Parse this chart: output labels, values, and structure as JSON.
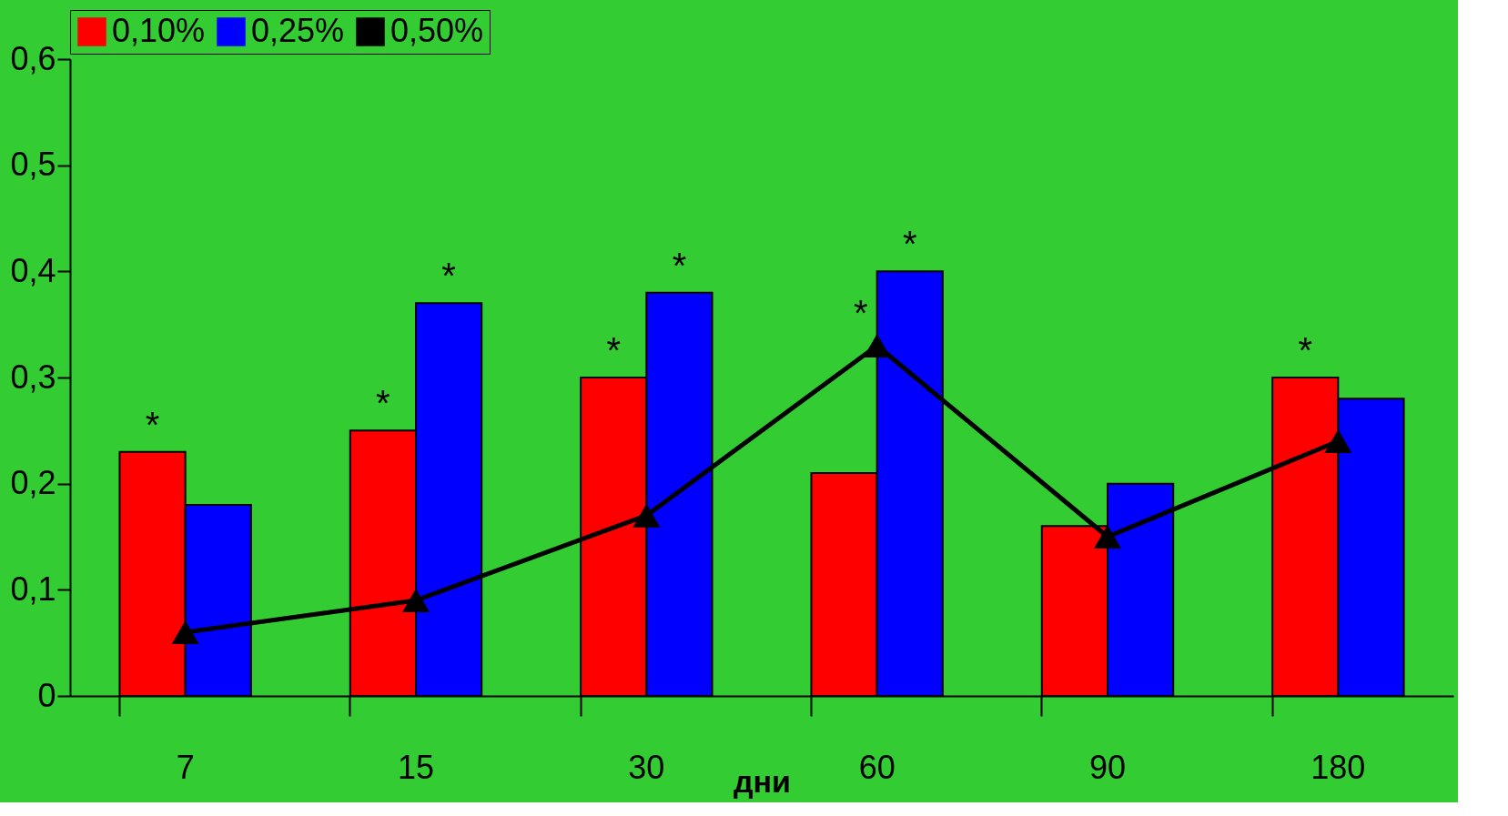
{
  "chart_data": {
    "type": "bar",
    "categories": [
      "7",
      "15",
      "30",
      "60",
      "90",
      "180"
    ],
    "xlabel": "дни",
    "series": [
      {
        "name": "0,10%",
        "color": "#ff0000",
        "values": [
          0.23,
          0.25,
          0.3,
          0.21,
          0.16,
          0.3
        ]
      },
      {
        "name": "0,25%",
        "color": "#0000ff",
        "values": [
          0.18,
          0.37,
          0.38,
          0.4,
          0.2,
          0.28
        ]
      },
      {
        "name": "0,50%",
        "type": "line",
        "color": "#000000",
        "marker": "triangle",
        "values": [
          0.06,
          0.09,
          0.17,
          0.33,
          0.15,
          0.24
        ]
      }
    ],
    "ylim": [
      0,
      0.6
    ],
    "yticks": [
      0,
      {
        "value": 0.1,
        "label": "0,1"
      },
      {
        "value": 0.2,
        "label": "0,2"
      },
      {
        "value": 0.3,
        "label": "0,3"
      },
      {
        "value": 0.4,
        "label": "0,4"
      },
      {
        "value": 0.5,
        "label": "0,5"
      },
      {
        "value": 0.6,
        "label": "0,6"
      }
    ],
    "annotations": [
      {
        "text": "*",
        "x": "7",
        "y": 0.23
      },
      {
        "text": "*",
        "x": "15",
        "y": 0.25
      },
      {
        "text": "*",
        "x": "15",
        "y": 0.37
      },
      {
        "text": "*",
        "x": "30",
        "y": 0.3
      },
      {
        "text": "*",
        "x": "30",
        "y": 0.38
      },
      {
        "text": "*",
        "x": "60",
        "y": 0.33
      },
      {
        "text": "*",
        "x": "60",
        "y": 0.4
      },
      {
        "text": "*",
        "x": "180",
        "y": 0.3
      }
    ],
    "legend": "top",
    "grid": false
  }
}
